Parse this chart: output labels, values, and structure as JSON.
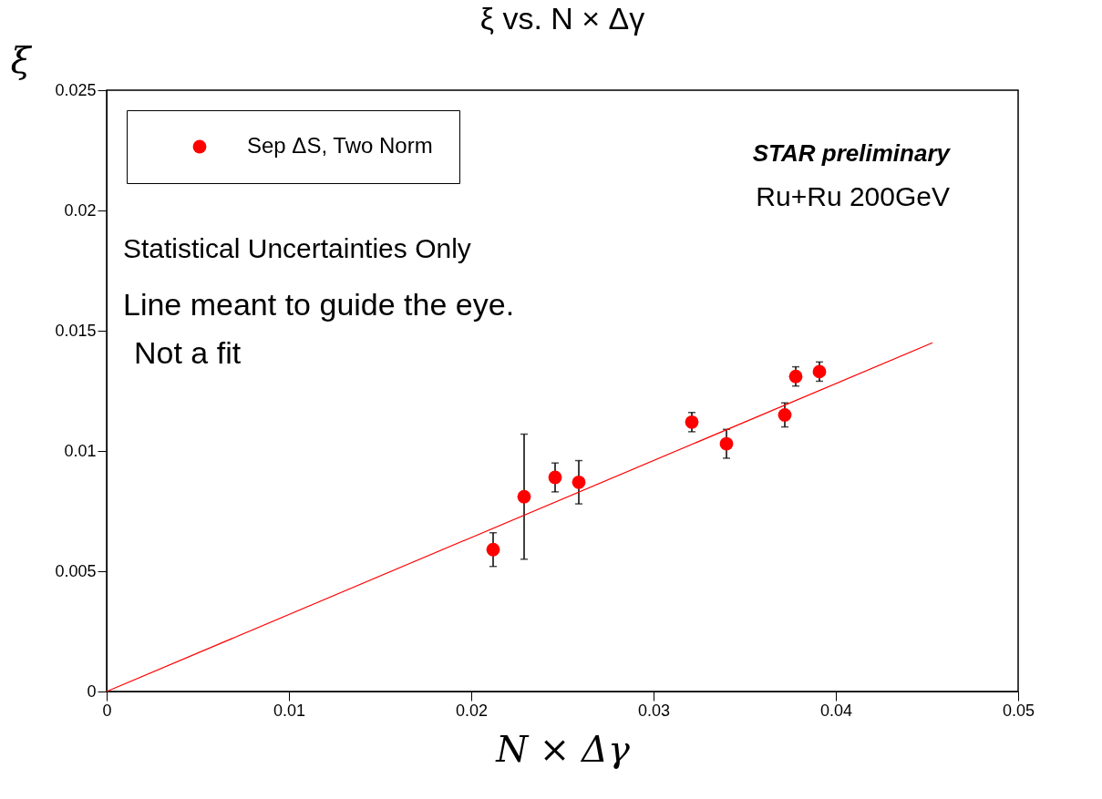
{
  "chart_data": {
    "type": "scatter",
    "title": "ξ vs. N × Δγ",
    "xlabel": "N × Δγ",
    "ylabel": "ξ",
    "xlim": [
      0,
      0.05
    ],
    "xticks": [
      0,
      0.01,
      0.02,
      0.03,
      0.04,
      0.05
    ],
    "ylim": [
      0,
      0.025
    ],
    "yticks": [
      0,
      0.005,
      0.01,
      0.015,
      0.02,
      0.025
    ],
    "grid": false,
    "legend": "top left",
    "series": [
      {
        "name": "Sep ΔS, Two Norm",
        "color": "#ff0000",
        "marker": "circle",
        "x": [
          0.0212,
          0.0229,
          0.0246,
          0.0259,
          0.0321,
          0.034,
          0.0372,
          0.0378,
          0.0391
        ],
        "values": [
          0.0059,
          0.0081,
          0.0089,
          0.0087,
          0.0112,
          0.0103,
          0.0115,
          0.0131,
          0.0133
        ],
        "errors": [
          0.0007,
          0.0026,
          0.0006,
          0.0009,
          0.0004,
          0.0006,
          0.0005,
          0.0004,
          0.0004
        ]
      },
      {
        "type": "line",
        "color": "#ff0000",
        "x": [
          0,
          0.0453
        ],
        "values": [
          0,
          0.0145
        ]
      }
    ],
    "annotations": [
      "STAR preliminary",
      "Ru+Ru 200GeV",
      "Statistical Uncertainties Only",
      "Line meant to guide the eye.",
      "Not a fit"
    ]
  }
}
